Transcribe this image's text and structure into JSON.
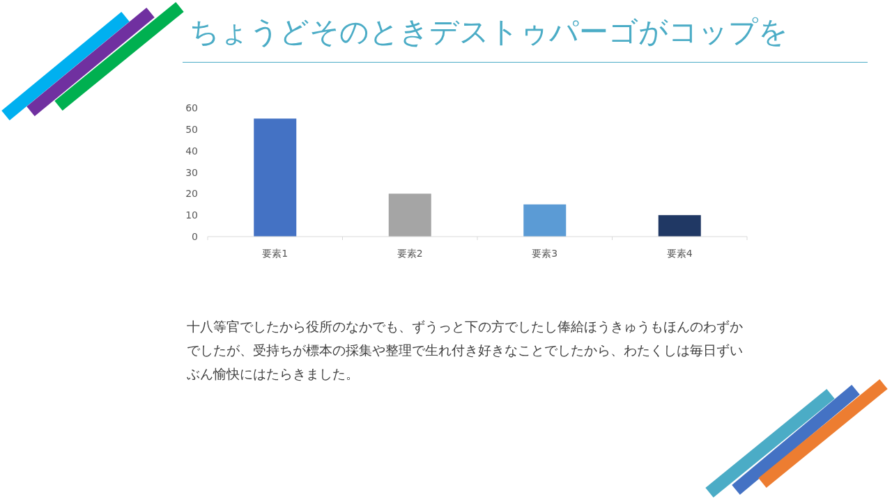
{
  "chart_data": {
    "type": "bar",
    "title": "ちょうどそのときデストゥパーゴがコップを",
    "categories": [
      "要素1",
      "要素2",
      "要素3",
      "要素4"
    ],
    "values": [
      55,
      20,
      15,
      10
    ],
    "colors": [
      "#4472c4",
      "#a5a5a5",
      "#5b9bd5",
      "#203864"
    ],
    "ylim": [
      0,
      60
    ],
    "yticks": [
      0,
      10,
      20,
      30,
      40,
      50,
      60
    ],
    "grid": false,
    "annotations": [
      "十八等官でしたから役所のなかでも、ずうっと下の方でしたし俸給ほうきゅうもほんのわずかでしたが、受持ちが標本の採集や整理で生れ付き好きなことでしたから、わたくしは毎日ずいぶん愉快にはたらきました。"
    ]
  }
}
